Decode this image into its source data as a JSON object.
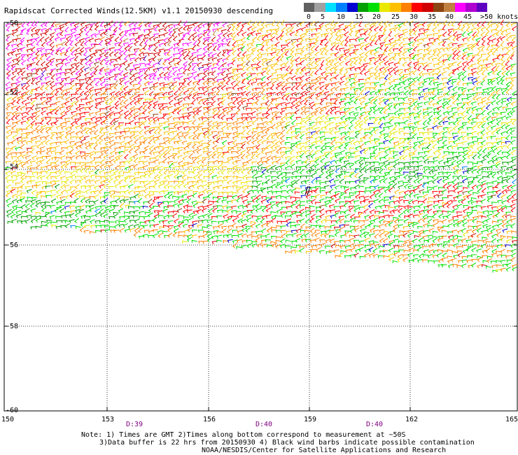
{
  "title": "Rapidscat Corrected Winds(12.5KM) v1.1 20150930 descending",
  "colorbar": {
    "colors": [
      "#606060",
      "#a0a0a0",
      "#00e0ff",
      "#0080ff",
      "#0000d0",
      "#00a000",
      "#00e000",
      "#e8e800",
      "#ffc000",
      "#ff8000",
      "#ff0000",
      "#d00000",
      "#8b4513",
      "#c08040",
      "#ff00ff",
      "#b000d0",
      "#6000c0"
    ],
    "labels": [
      "0",
      "5",
      "10",
      "15",
      "20",
      "25",
      "30",
      "35",
      "40",
      "45",
      ">50 knots"
    ]
  },
  "axes": {
    "x_ticks": [
      "150",
      "153",
      "156",
      "159",
      "162",
      "165"
    ],
    "y_ticks": [
      "-50",
      "-52",
      "-54",
      "-56",
      "-58",
      "-60"
    ]
  },
  "pass_times": [
    "D:39",
    "D:40",
    "D:40"
  ],
  "notes": [
    "Note: 1) Times are GMT 2)Times along bottom correspond to measurement at ~50S",
    "3)Data buffer is 22 hrs from 20150930 4) Black wind barbs indicate possible contamination",
    "NOAA/NESDIS/Center for Satellite Applications and Research"
  ]
}
